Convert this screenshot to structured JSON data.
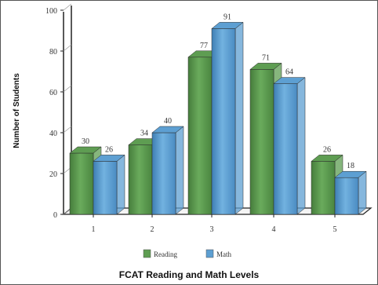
{
  "chart_data": {
    "type": "bar",
    "title": "FCAT Reading and Math Levels",
    "xlabel": "",
    "ylabel": "Number of Students",
    "categories": [
      "1",
      "2",
      "3",
      "4",
      "5"
    ],
    "series": [
      {
        "name": "Reading",
        "values": [
          30,
          34,
          77,
          71,
          26
        ]
      },
      {
        "name": "Math",
        "values": [
          26,
          40,
          91,
          64,
          18
        ]
      }
    ],
    "ylim": [
      0,
      100
    ],
    "yticks": [
      0,
      20,
      40,
      60,
      80,
      100
    ],
    "grid": false,
    "legend_position": "bottom"
  },
  "colors": {
    "Reading": "#5e9d52",
    "Math": "#5d9fd2",
    "axis": "#222222"
  }
}
